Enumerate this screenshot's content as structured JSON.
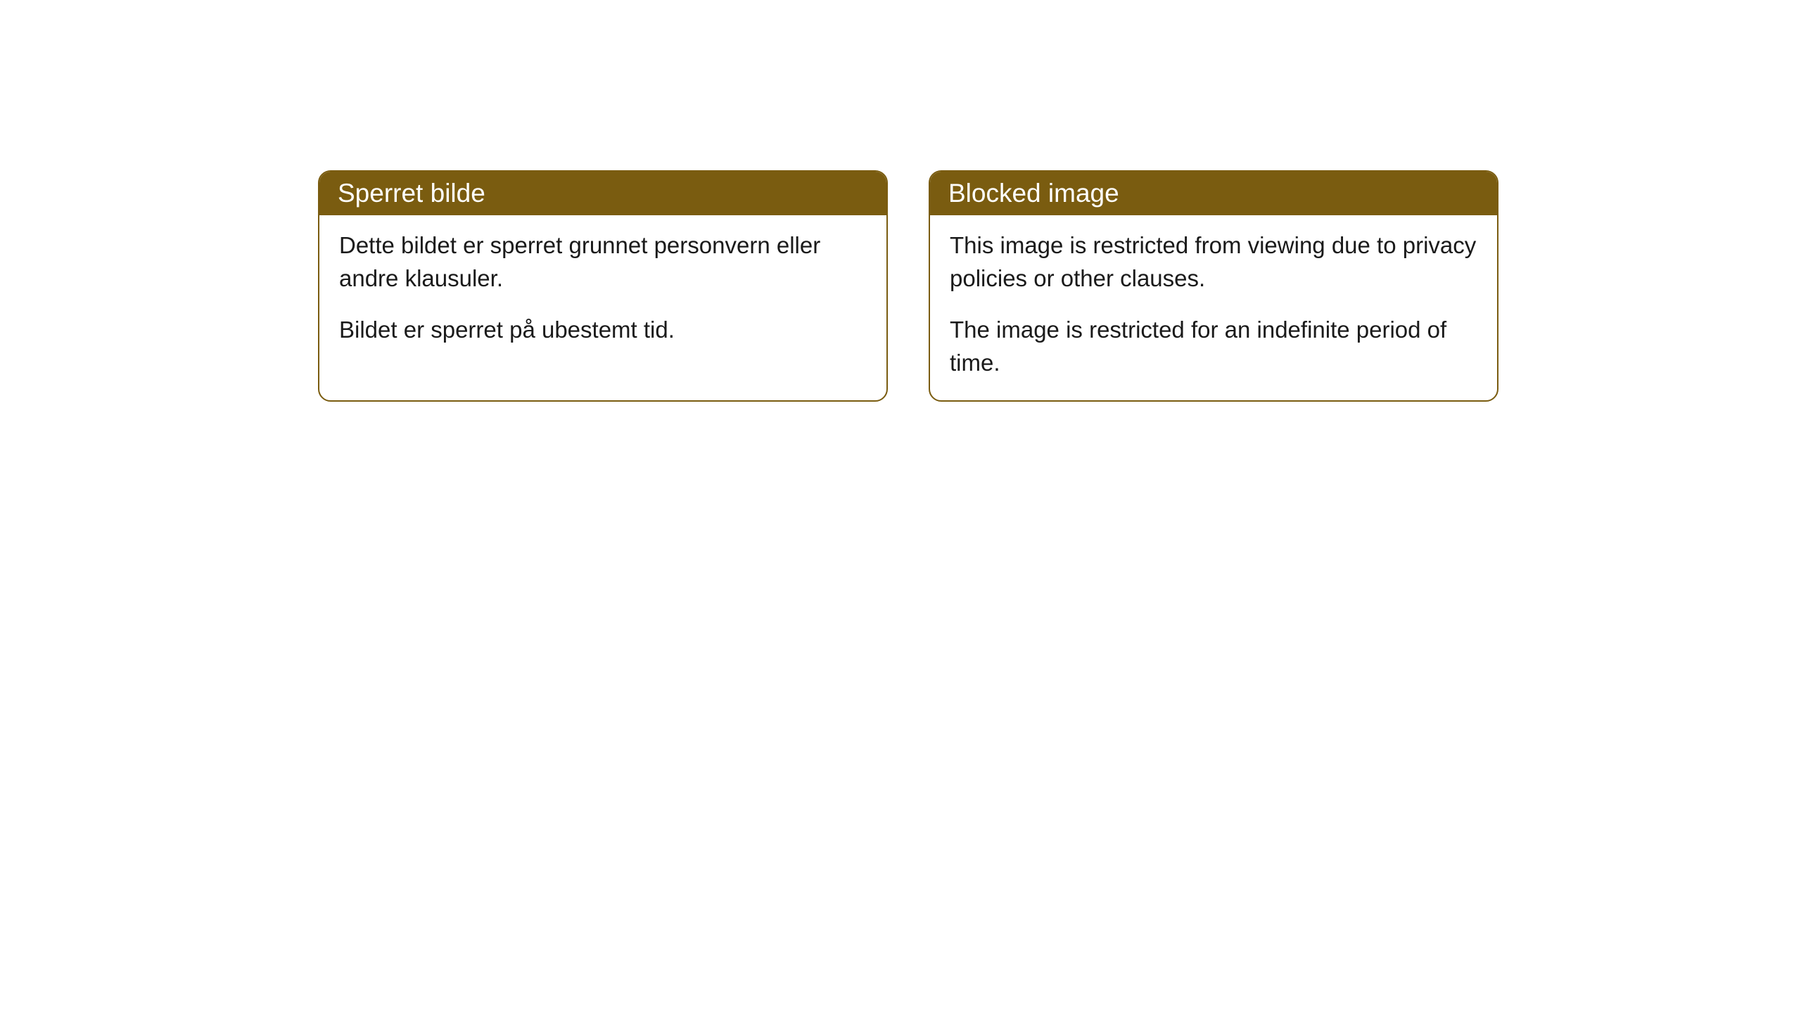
{
  "cards": [
    {
      "title": "Sperret bilde",
      "para1": "Dette bildet er sperret grunnet personvern eller andre klausuler.",
      "para2": "Bildet er sperret på ubestemt tid."
    },
    {
      "title": "Blocked image",
      "para1": "This image is restricted from viewing due to privacy policies or other clauses.",
      "para2": "The image is restricted for an indefinite period of time."
    }
  ],
  "colors": {
    "header_bg": "#7a5c10",
    "header_text": "#ffffff",
    "border": "#7a5c10",
    "body_bg": "#ffffff",
    "body_text": "#1a1a1a"
  }
}
